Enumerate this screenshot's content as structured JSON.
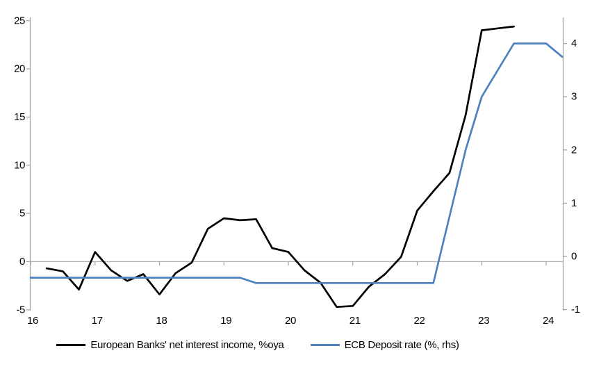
{
  "chart_data": {
    "type": "line",
    "title": "",
    "x_axis": {
      "ticks": [
        "16",
        "17",
        "18",
        "19",
        "20",
        "21",
        "22",
        "23",
        "24"
      ],
      "tick_values": [
        16,
        17,
        18,
        19,
        20,
        21,
        22,
        23,
        24
      ],
      "range": [
        16,
        24.3
      ]
    },
    "left_axis": {
      "ticks": [
        "25",
        "20",
        "15",
        "10",
        "5",
        "0",
        "-5"
      ],
      "tick_values": [
        25,
        20,
        15,
        10,
        5,
        0,
        -5
      ],
      "range": [
        -5,
        25
      ]
    },
    "right_axis": {
      "ticks": [
        "4",
        "3",
        "2",
        "1",
        "0",
        "-1"
      ],
      "tick_values": [
        4,
        3,
        2,
        1,
        0,
        -1
      ],
      "range": [
        -1,
        4.5
      ]
    },
    "grid": "off",
    "legend_position": "bottom",
    "series": [
      {
        "name": "European Banks' net interest income, %oya",
        "axis": "left",
        "color": "#000000",
        "x": [
          16.25,
          16.5,
          16.75,
          17.0,
          17.25,
          17.5,
          17.75,
          18.0,
          18.25,
          18.5,
          18.75,
          19.0,
          19.25,
          19.5,
          19.75,
          20.0,
          20.25,
          20.5,
          20.75,
          21.0,
          21.25,
          21.5,
          21.75,
          22.0,
          22.25,
          22.5,
          22.75,
          23.0,
          23.25,
          23.5
        ],
        "values": [
          -0.7,
          -1.0,
          -2.9,
          1.0,
          -0.9,
          -2.0,
          -1.3,
          -3.4,
          -1.2,
          -0.1,
          3.4,
          4.5,
          4.3,
          4.4,
          1.4,
          1.0,
          -0.9,
          -2.2,
          -4.7,
          -4.6,
          -2.6,
          -1.3,
          0.5,
          5.3,
          7.3,
          9.2,
          15.2,
          24.0,
          24.2,
          24.4
        ]
      },
      {
        "name": "ECB Deposit rate (%, rhs)",
        "axis": "right",
        "color": "#4e81bd",
        "x": [
          16.0,
          16.25,
          16.5,
          16.75,
          17.0,
          17.25,
          17.5,
          17.75,
          18.0,
          18.25,
          18.5,
          18.75,
          19.0,
          19.25,
          19.5,
          19.75,
          20.0,
          20.25,
          20.5,
          20.75,
          21.0,
          21.25,
          21.5,
          21.75,
          22.0,
          22.25,
          22.5,
          22.75,
          23.0,
          23.25,
          23.5,
          23.75,
          24.0,
          24.25
        ],
        "values": [
          -0.4,
          -0.4,
          -0.4,
          -0.4,
          -0.4,
          -0.4,
          -0.4,
          -0.4,
          -0.4,
          -0.4,
          -0.4,
          -0.4,
          -0.4,
          -0.4,
          -0.5,
          -0.5,
          -0.5,
          -0.5,
          -0.5,
          -0.5,
          -0.5,
          -0.5,
          -0.5,
          -0.5,
          -0.5,
          -0.5,
          0.75,
          2.0,
          3.0,
          3.5,
          4.0,
          4.0,
          4.0,
          3.75
        ]
      }
    ]
  },
  "colors": {
    "background": "#ffffff",
    "axis_line": "#a6a6a6",
    "zero_line": "#b3b3b3",
    "series_black": "#000000",
    "series_blue": "#4e81bd",
    "text": "#000000"
  }
}
